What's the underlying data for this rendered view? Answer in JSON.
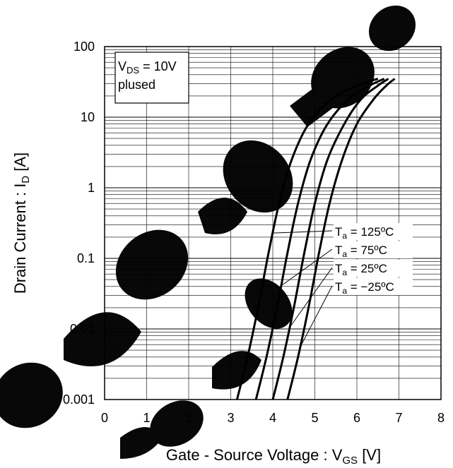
{
  "chart_data": {
    "type": "line",
    "xlabel": {
      "main": "Gate - Source Voltage : V",
      "sub": "GS",
      "unit": " [V]"
    },
    "ylabel": {
      "main": "Drain Current : I",
      "sub": "D",
      "unit": " [A]"
    },
    "xlim": [
      0,
      8
    ],
    "ylim": [
      0.001,
      100
    ],
    "yscale": "log",
    "grid": true,
    "x_ticks": [
      "0",
      "1",
      "2",
      "3",
      "4",
      "5",
      "6",
      "7",
      "8"
    ],
    "y_ticks": [
      {
        "value": 100,
        "label": "100"
      },
      {
        "value": 10,
        "label": "10"
      },
      {
        "value": 1,
        "label": "1"
      },
      {
        "value": 0.1,
        "label": "0.1"
      },
      {
        "value": 0.01,
        "label": "0.01"
      },
      {
        "value": 0.001,
        "label": "0.001"
      }
    ],
    "condition_box": {
      "line1_main": "V",
      "line1_sub": "DS",
      "line1_rest": " = 10V",
      "line2": "plused"
    },
    "series": [
      {
        "name": "Ta = 125ºC",
        "label_main": "T",
        "label_sub": "a",
        "label_rest": " = 125ºC",
        "points": [
          [
            3.15,
            0.001
          ],
          [
            3.4,
            0.004
          ],
          [
            3.65,
            0.02
          ],
          [
            3.9,
            0.12
          ],
          [
            4.15,
            0.6
          ],
          [
            4.45,
            2.5
          ],
          [
            4.85,
            8
          ],
          [
            5.4,
            18
          ],
          [
            6.0,
            28
          ],
          [
            6.5,
            35
          ]
        ]
      },
      {
        "name": "Ta = 75ºC",
        "label_main": "T",
        "label_sub": "a",
        "label_rest": " = 75ºC",
        "points": [
          [
            3.6,
            0.001
          ],
          [
            3.85,
            0.004
          ],
          [
            4.1,
            0.02
          ],
          [
            4.35,
            0.12
          ],
          [
            4.6,
            0.6
          ],
          [
            4.9,
            2.5
          ],
          [
            5.3,
            8
          ],
          [
            5.8,
            18
          ],
          [
            6.3,
            28
          ],
          [
            6.65,
            35
          ]
        ]
      },
      {
        "name": "Ta = 25ºC",
        "label_main": "T",
        "label_sub": "a",
        "label_rest": " = 25ºC",
        "points": [
          [
            4.0,
            0.001
          ],
          [
            4.25,
            0.004
          ],
          [
            4.5,
            0.02
          ],
          [
            4.75,
            0.12
          ],
          [
            5.0,
            0.6
          ],
          [
            5.3,
            2.5
          ],
          [
            5.7,
            8
          ],
          [
            6.1,
            18
          ],
          [
            6.5,
            28
          ],
          [
            6.75,
            35
          ]
        ]
      },
      {
        "name": "Ta = −25ºC",
        "label_main": "T",
        "label_sub": "a",
        "label_rest": " = −25ºC",
        "points": [
          [
            4.35,
            0.001
          ],
          [
            4.6,
            0.004
          ],
          [
            4.85,
            0.02
          ],
          [
            5.1,
            0.12
          ],
          [
            5.35,
            0.6
          ],
          [
            5.65,
            2.5
          ],
          [
            6.0,
            8
          ],
          [
            6.4,
            18
          ],
          [
            6.7,
            28
          ],
          [
            6.9,
            35
          ]
        ]
      }
    ],
    "legend_anchor_x": [
      4.0,
      4.2,
      4.4,
      4.65
    ]
  }
}
